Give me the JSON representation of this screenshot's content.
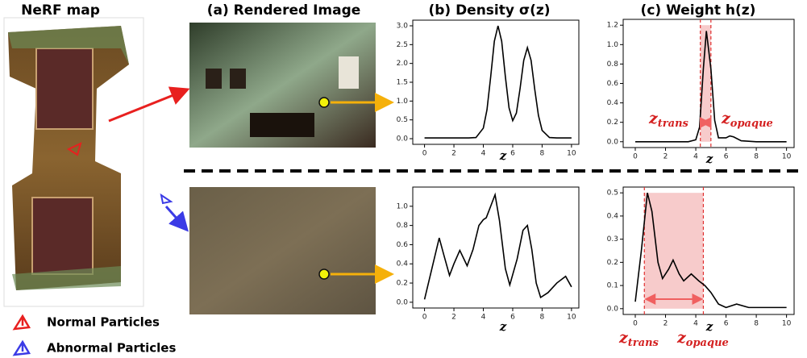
{
  "headers": [
    "NeRF map",
    "(a) Rendered Image",
    "(b) Density σ(z)",
    "(c) Weight h(z)"
  ],
  "legend": [
    {
      "name": "Normal Particles",
      "color": "#e8201f"
    },
    {
      "name": "Abnormal Particles",
      "color": "#3b3be6"
    }
  ],
  "chart_data": [
    {
      "type": "line",
      "x_label": "z",
      "color": "#000000",
      "xlim": [
        -0.8,
        10.5
      ],
      "xticks": [
        0,
        2,
        4,
        6,
        8,
        10
      ],
      "ylim": [
        -0.15,
        3.15
      ],
      "yticks": [
        {
          "value": 0,
          "label": "0.0"
        },
        {
          "value": 0.5,
          "label": "0.5"
        },
        {
          "value": 1,
          "label": "1.0"
        },
        {
          "value": 1.5,
          "label": "1.5"
        },
        {
          "value": 2,
          "label": "2.0"
        },
        {
          "value": 2.5,
          "label": "2.5"
        },
        {
          "value": 3,
          "label": "3.0"
        }
      ],
      "x": [
        0,
        1,
        2,
        3,
        3.5,
        4,
        4.25,
        4.5,
        4.75,
        5,
        5.25,
        5.5,
        5.75,
        6,
        6.25,
        6.5,
        6.75,
        7,
        7.25,
        7.5,
        7.75,
        8,
        8.5,
        9,
        10
      ],
      "values": [
        0.02,
        0.02,
        0.02,
        0.02,
        0.03,
        0.28,
        0.77,
        1.64,
        2.59,
        3.0,
        2.59,
        1.65,
        0.82,
        0.48,
        0.68,
        1.33,
        2.08,
        2.42,
        2.08,
        1.31,
        0.62,
        0.22,
        0.03,
        0.02,
        0.02
      ]
    },
    {
      "type": "line",
      "x_label": "z",
      "color": "#000000",
      "xlim": [
        -0.8,
        10.5
      ],
      "xticks": [
        0,
        2,
        4,
        6,
        8,
        10
      ],
      "ylim": [
        -0.06,
        1.26
      ],
      "yticks": [
        {
          "value": 0,
          "label": "0.0"
        },
        {
          "value": 0.2,
          "label": "0.2"
        },
        {
          "value": 0.4,
          "label": "0.4"
        },
        {
          "value": 0.6,
          "label": "0.6"
        },
        {
          "value": 0.8,
          "label": "0.8"
        },
        {
          "value": 1,
          "label": "1.0"
        },
        {
          "value": 1.2,
          "label": "1.2"
        }
      ],
      "x": [
        0,
        1,
        2,
        3,
        3.5,
        4,
        4.25,
        4.5,
        4.7,
        5,
        5.25,
        5.5,
        6,
        6.25,
        6.5,
        7,
        8,
        9,
        10
      ],
      "values": [
        0,
        0,
        0,
        0,
        0,
        0.02,
        0.15,
        0.75,
        1.14,
        0.75,
        0.22,
        0.04,
        0.04,
        0.06,
        0.05,
        0.01,
        0,
        0,
        0
      ],
      "span": {
        "trans": 4.3,
        "opaque": 5.0,
        "color": "#e03030"
      },
      "annotations": [
        {
          "label": "z",
          "subscript": "trans"
        },
        {
          "label": "z",
          "subscript": "opaque"
        }
      ]
    },
    {
      "type": "line",
      "x_label": "z",
      "color": "#000000",
      "xlim": [
        -0.8,
        10.5
      ],
      "xticks": [
        0,
        2,
        4,
        6,
        8,
        10
      ],
      "ylim": [
        -0.06,
        1.2
      ],
      "yticks": [
        {
          "value": 0,
          "label": "0.0"
        },
        {
          "value": 0.2,
          "label": "0.2"
        },
        {
          "value": 0.4,
          "label": "0.4"
        },
        {
          "value": 0.6,
          "label": "0.6"
        },
        {
          "value": 0.8,
          "label": "0.8"
        },
        {
          "value": 1,
          "label": "1.0"
        }
      ],
      "x": [
        0,
        0.5,
        1,
        1.3,
        1.7,
        2,
        2.4,
        2.9,
        3.3,
        3.7,
        4,
        4.2,
        4.5,
        4.8,
        5.1,
        5.5,
        5.8,
        6.3,
        6.7,
        7,
        7.3,
        7.6,
        7.9,
        8.4,
        9,
        9.6,
        10
      ],
      "values": [
        0.03,
        0.35,
        0.67,
        0.5,
        0.28,
        0.4,
        0.54,
        0.38,
        0.55,
        0.8,
        0.86,
        0.88,
        1.0,
        1.12,
        0.85,
        0.35,
        0.18,
        0.45,
        0.75,
        0.8,
        0.55,
        0.2,
        0.05,
        0.1,
        0.2,
        0.27,
        0.16
      ]
    },
    {
      "type": "line",
      "x_label": "z",
      "color": "#000000",
      "xlim": [
        -0.8,
        10.5
      ],
      "xticks": [
        0,
        2,
        4,
        6,
        8,
        10
      ],
      "ylim": [
        -0.025,
        0.525
      ],
      "yticks": [
        {
          "value": 0,
          "label": "0.0"
        },
        {
          "value": 0.1,
          "label": "0.1"
        },
        {
          "value": 0.2,
          "label": "0.2"
        },
        {
          "value": 0.3,
          "label": "0.3"
        },
        {
          "value": 0.4,
          "label": "0.4"
        },
        {
          "value": 0.5,
          "label": "0.5"
        }
      ],
      "x": [
        0,
        0.4,
        0.8,
        1.1,
        1.5,
        1.8,
        2.2,
        2.5,
        2.9,
        3.2,
        3.7,
        4.2,
        4.6,
        5,
        5.5,
        6,
        6.7,
        7.5,
        8,
        9,
        10
      ],
      "values": [
        0.03,
        0.25,
        0.5,
        0.42,
        0.2,
        0.13,
        0.17,
        0.21,
        0.15,
        0.12,
        0.15,
        0.12,
        0.1,
        0.07,
        0.02,
        0.005,
        0.02,
        0.005,
        0.005,
        0.005,
        0.005
      ],
      "span": {
        "trans": 0.6,
        "opaque": 4.5,
        "color": "#e03030"
      },
      "annotations": [
        {
          "label": "z",
          "subscript": "trans"
        },
        {
          "label": "z",
          "subscript": "opaque"
        }
      ]
    }
  ]
}
